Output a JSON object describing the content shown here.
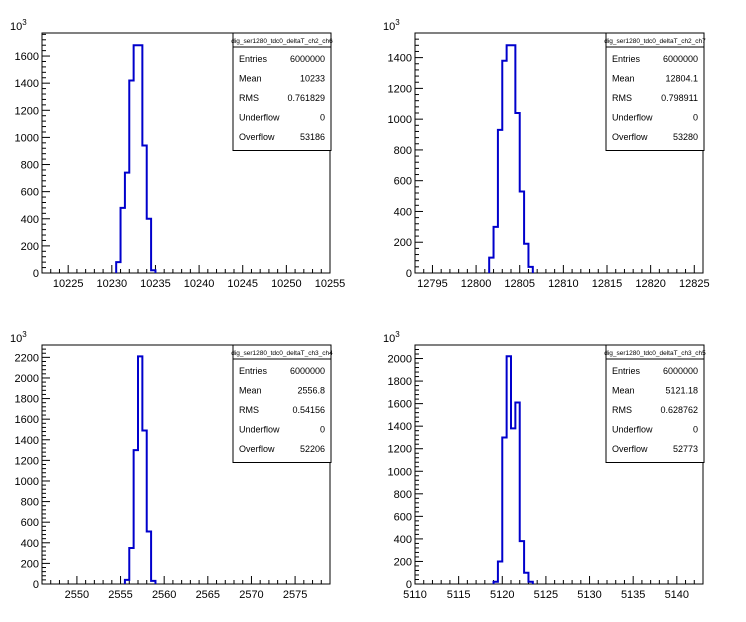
{
  "chart_data": [
    {
      "type": "histogram",
      "title": "dig_ser1280_tdc0_deltaT_ch2_ch6",
      "y_exponent": "10",
      "y_exponent_power": "3",
      "xlim": [
        10222,
        10255
      ],
      "ylim": [
        0,
        1770
      ],
      "xticks": [
        10225,
        10230,
        10235,
        10240,
        10245,
        10250,
        10255
      ],
      "yticks": [
        0,
        200,
        400,
        600,
        800,
        1000,
        1200,
        1400,
        1600
      ],
      "bin_width": 0.5,
      "bins": [
        [
          10230.5,
          80
        ],
        [
          10231,
          480
        ],
        [
          10231.5,
          740
        ],
        [
          10232,
          1420
        ],
        [
          10232.5,
          1680
        ],
        [
          10233,
          1680
        ],
        [
          10233.5,
          940
        ],
        [
          10234,
          400
        ],
        [
          10234.5,
          20
        ]
      ],
      "stats": [
        {
          "label": "Entries",
          "value": "6000000"
        },
        {
          "label": "Mean",
          "value": "10233"
        },
        {
          "label": "RMS",
          "value": "0.761829"
        },
        {
          "label": "Underflow",
          "value": "0"
        },
        {
          "label": "Overflow",
          "value": "53186"
        }
      ],
      "line_color": "#0000cc"
    },
    {
      "type": "histogram",
      "title": "dig_ser1280_tdc0_deltaT_ch2_ch7",
      "y_exponent": "10",
      "y_exponent_power": "3",
      "xlim": [
        12793,
        12826
      ],
      "ylim": [
        0,
        1560
      ],
      "xticks": [
        12795,
        12800,
        12805,
        12810,
        12815,
        12820,
        12825
      ],
      "yticks": [
        0,
        200,
        400,
        600,
        800,
        1000,
        1200,
        1400
      ],
      "bin_width": 0.5,
      "bins": [
        [
          12801.5,
          100
        ],
        [
          12802,
          300
        ],
        [
          12802.5,
          930
        ],
        [
          12803,
          1380
        ],
        [
          12803.5,
          1480
        ],
        [
          12804,
          1480
        ],
        [
          12804.5,
          1040
        ],
        [
          12805,
          530
        ],
        [
          12805.5,
          190
        ],
        [
          12806,
          40
        ]
      ],
      "stats": [
        {
          "label": "Entries",
          "value": "6000000"
        },
        {
          "label": "Mean",
          "value": "12804.1"
        },
        {
          "label": "RMS",
          "value": "0.798911"
        },
        {
          "label": "Underflow",
          "value": "0"
        },
        {
          "label": "Overflow",
          "value": "53280"
        }
      ],
      "line_color": "#0000cc"
    },
    {
      "type": "histogram",
      "title": "dig_ser1280_tdc0_deltaT_ch3_ch4",
      "y_exponent": "10",
      "y_exponent_power": "3",
      "xlim": [
        2546,
        2579
      ],
      "ylim": [
        0,
        2320
      ],
      "xticks": [
        2550,
        2555,
        2560,
        2565,
        2570,
        2575
      ],
      "yticks": [
        0,
        200,
        400,
        600,
        800,
        1000,
        1200,
        1400,
        1600,
        1800,
        2000,
        2200
      ],
      "bin_width": 0.5,
      "bins": [
        [
          2555.5,
          40
        ],
        [
          2556,
          350
        ],
        [
          2556.5,
          1300
        ],
        [
          2557,
          2210
        ],
        [
          2557.5,
          1490
        ],
        [
          2558,
          510
        ],
        [
          2558.5,
          30
        ]
      ],
      "stats": [
        {
          "label": "Entries",
          "value": "6000000"
        },
        {
          "label": "Mean",
          "value": "2556.8"
        },
        {
          "label": "RMS",
          "value": "0.54156"
        },
        {
          "label": "Underflow",
          "value": "0"
        },
        {
          "label": "Overflow",
          "value": "52206"
        }
      ],
      "line_color": "#0000cc"
    },
    {
      "type": "histogram",
      "title": "dig_ser1280_tdc0_deltaT_ch3_ch5",
      "y_exponent": "10",
      "y_exponent_power": "3",
      "xlim": [
        5110,
        5143
      ],
      "ylim": [
        0,
        2120
      ],
      "xticks": [
        5110,
        5115,
        5120,
        5125,
        5130,
        5135,
        5140
      ],
      "yticks": [
        0,
        200,
        400,
        600,
        800,
        1000,
        1200,
        1400,
        1600,
        1800,
        2000
      ],
      "bin_width": 0.5,
      "bins": [
        [
          5119,
          20
        ],
        [
          5119.5,
          200
        ],
        [
          5120,
          1300
        ],
        [
          5120.5,
          2020
        ],
        [
          5121,
          1380
        ],
        [
          5121.5,
          1610
        ],
        [
          5122,
          380
        ],
        [
          5122.5,
          100
        ],
        [
          5123,
          20
        ]
      ],
      "stats": [
        {
          "label": "Entries",
          "value": "6000000"
        },
        {
          "label": "Mean",
          "value": "5121.18"
        },
        {
          "label": "RMS",
          "value": "0.628762"
        },
        {
          "label": "Underflow",
          "value": "0"
        },
        {
          "label": "Overflow",
          "value": "52773"
        }
      ],
      "line_color": "#0000cc"
    }
  ]
}
